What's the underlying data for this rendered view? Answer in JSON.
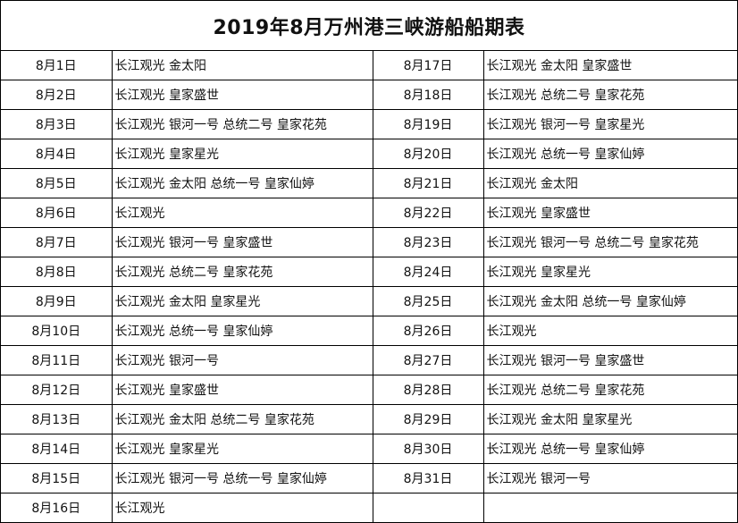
{
  "title": "2019年8月万州港三峡游船船期表",
  "left": [
    {
      "date": "8月1日",
      "ships": "长江观光 金太阳"
    },
    {
      "date": "8月2日",
      "ships": "长江观光 皇家盛世"
    },
    {
      "date": "8月3日",
      "ships": "长江观光 银河一号 总统二号 皇家花苑"
    },
    {
      "date": "8月4日",
      "ships": "长江观光 皇家星光"
    },
    {
      "date": "8月5日",
      "ships": "长江观光 金太阳 总统一号 皇家仙婷"
    },
    {
      "date": "8月6日",
      "ships": "长江观光"
    },
    {
      "date": "8月7日",
      "ships": "长江观光 银河一号 皇家盛世"
    },
    {
      "date": "8月8日",
      "ships": "长江观光 总统二号 皇家花苑"
    },
    {
      "date": "8月9日",
      "ships": "长江观光 金太阳 皇家星光"
    },
    {
      "date": "8月10日",
      "ships": "长江观光 总统一号 皇家仙婷"
    },
    {
      "date": "8月11日",
      "ships": "长江观光 银河一号"
    },
    {
      "date": "8月12日",
      "ships": "长江观光 皇家盛世"
    },
    {
      "date": "8月13日",
      "ships": "长江观光 金太阳 总统二号 皇家花苑"
    },
    {
      "date": "8月14日",
      "ships": "长江观光 皇家星光"
    },
    {
      "date": "8月15日",
      "ships": "长江观光 银河一号 总统一号 皇家仙婷"
    },
    {
      "date": "8月16日",
      "ships": "长江观光"
    }
  ],
  "right": [
    {
      "date": "8月17日",
      "ships": "长江观光 金太阳 皇家盛世"
    },
    {
      "date": "8月18日",
      "ships": "长江观光 总统二号 皇家花苑"
    },
    {
      "date": "8月19日",
      "ships": "长江观光 银河一号 皇家星光"
    },
    {
      "date": "8月20日",
      "ships": "长江观光 总统一号 皇家仙婷"
    },
    {
      "date": "8月21日",
      "ships": "长江观光 金太阳"
    },
    {
      "date": "8月22日",
      "ships": "长江观光 皇家盛世"
    },
    {
      "date": "8月23日",
      "ships": "长江观光 银河一号 总统二号 皇家花苑"
    },
    {
      "date": "8月24日",
      "ships": "长江观光 皇家星光"
    },
    {
      "date": "8月25日",
      "ships": "长江观光 金太阳 总统一号 皇家仙婷"
    },
    {
      "date": "8月26日",
      "ships": "长江观光"
    },
    {
      "date": "8月27日",
      "ships": "长江观光 银河一号 皇家盛世"
    },
    {
      "date": "8月28日",
      "ships": "长江观光 总统二号 皇家花苑"
    },
    {
      "date": "8月29日",
      "ships": "长江观光 金太阳 皇家星光"
    },
    {
      "date": "8月30日",
      "ships": "长江观光 总统一号 皇家仙婷"
    },
    {
      "date": "8月31日",
      "ships": "长江观光 银河一号"
    },
    {
      "date": "",
      "ships": ""
    }
  ]
}
